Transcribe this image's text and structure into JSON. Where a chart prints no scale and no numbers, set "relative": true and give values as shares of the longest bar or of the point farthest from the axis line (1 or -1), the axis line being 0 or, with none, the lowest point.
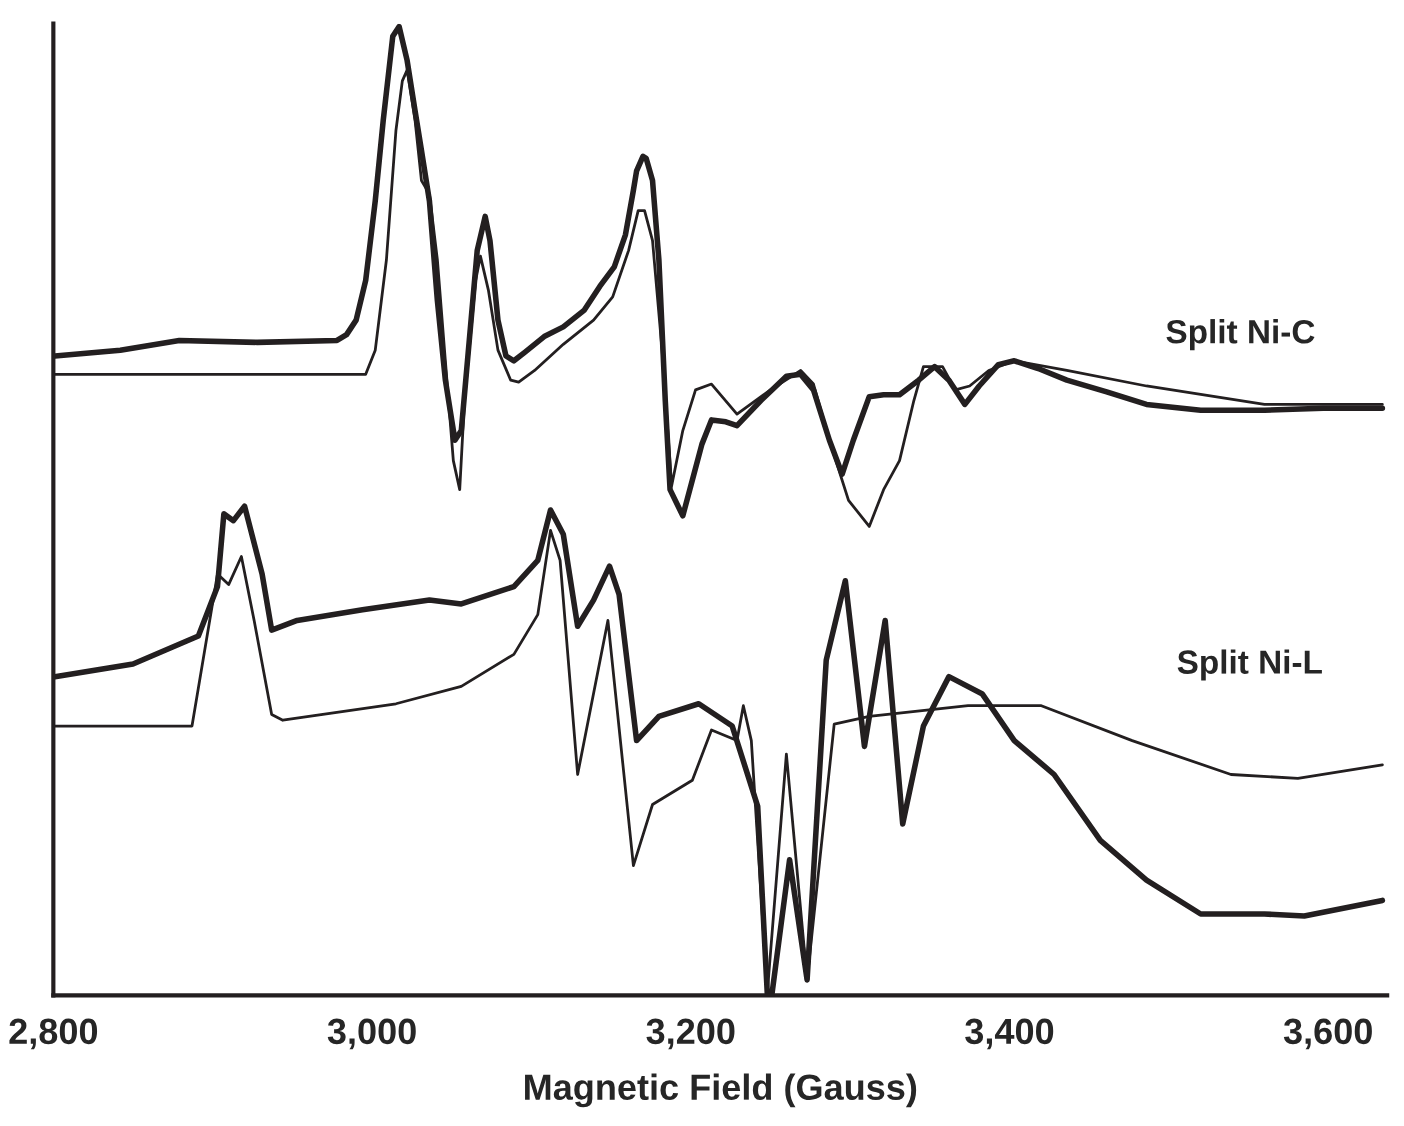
{
  "chart_data": {
    "type": "line",
    "relative": true,
    "xlabel": "Magnetic Field (Gauss)",
    "xlim": [
      2800,
      3637
    ],
    "xticks": [
      {
        "value": 2800,
        "label": "2,800"
      },
      {
        "value": 3000,
        "label": "3,000"
      },
      {
        "value": 3200,
        "label": "3,200"
      },
      {
        "value": 3400,
        "label": "3,400"
      },
      {
        "value": 3600,
        "label": "3,600"
      }
    ],
    "tick_labels": "x",
    "grid": false,
    "legend": false,
    "marker": "none",
    "line_style": "solid",
    "series": [
      {
        "color": "#231f20",
        "x": [
          2801,
          2842,
          2879,
          2928,
          2978,
          2984,
          2990,
          2996,
          3002,
          3007,
          3013,
          3017,
          3022,
          3027,
          3031,
          3036,
          3041,
          3046,
          3052,
          3056,
          3061,
          3066,
          3071,
          3074,
          3079,
          3084,
          3089,
          3096,
          3108,
          3120,
          3133,
          3143,
          3152,
          3159,
          3164,
          3166,
          3170,
          3172,
          3176,
          3180,
          3184,
          3187,
          3195,
          3201,
          3207,
          3213,
          3222,
          3229,
          3244,
          3260,
          3269,
          3277,
          3287,
          3295,
          3302,
          3312,
          3321,
          3331,
          3343,
          3353,
          3362,
          3372,
          3381,
          3393,
          3403,
          3418,
          3436,
          3461,
          3486,
          3520,
          3560,
          3597,
          3634
        ],
        "values": [
          0.66,
          0.666,
          0.676,
          0.674,
          0.676,
          0.682,
          0.697,
          0.738,
          0.82,
          0.903,
          0.99,
          1.0,
          0.965,
          0.913,
          0.872,
          0.82,
          0.717,
          0.635,
          0.573,
          0.583,
          0.676,
          0.769,
          0.804,
          0.779,
          0.697,
          0.66,
          0.655,
          0.664,
          0.68,
          0.69,
          0.707,
          0.732,
          0.752,
          0.785,
          0.831,
          0.851,
          0.866,
          0.864,
          0.841,
          0.759,
          0.614,
          0.522,
          0.495,
          0.532,
          0.569,
          0.594,
          0.592,
          0.588,
          0.614,
          0.639,
          0.641,
          0.625,
          0.573,
          0.538,
          0.573,
          0.618,
          0.62,
          0.62,
          0.635,
          0.649,
          0.635,
          0.61,
          0.629,
          0.651,
          0.655,
          0.647,
          0.635,
          0.623,
          0.61,
          0.604,
          0.604,
          0.606,
          0.606
        ]
      },
      {
        "color": "#231f20",
        "x": [
          2801,
          2996,
          3002,
          3009,
          3015,
          3019,
          3022,
          3027,
          3031,
          3036,
          3041,
          3046,
          3051,
          3055,
          3058,
          3065,
          3068,
          3073,
          3079,
          3087,
          3092,
          3102,
          3120,
          3139,
          3151,
          3161,
          3167,
          3171,
          3176,
          3182,
          3186,
          3188,
          3195,
          3203,
          3213,
          3229,
          3250,
          3269,
          3277,
          3287,
          3299,
          3312,
          3321,
          3331,
          3340,
          3346,
          3358,
          3366,
          3375,
          3387,
          3403,
          3436,
          3486,
          3560,
          3634
        ],
        "values": [
          0.641,
          0.641,
          0.666,
          0.759,
          0.893,
          0.944,
          0.955,
          0.903,
          0.841,
          0.827,
          0.759,
          0.655,
          0.552,
          0.522,
          0.614,
          0.738,
          0.763,
          0.728,
          0.666,
          0.635,
          0.633,
          0.645,
          0.672,
          0.697,
          0.721,
          0.769,
          0.81,
          0.81,
          0.779,
          0.666,
          0.573,
          0.526,
          0.583,
          0.625,
          0.631,
          0.6,
          0.625,
          0.645,
          0.631,
          0.573,
          0.511,
          0.484,
          0.522,
          0.552,
          0.614,
          0.649,
          0.649,
          0.625,
          0.629,
          0.645,
          0.655,
          0.645,
          0.629,
          0.61,
          0.61
        ]
      },
      {
        "color": "#231f20",
        "x": [
          2801,
          2850,
          2891,
          2903,
          2907,
          2913,
          2920,
          2931,
          2937,
          2953,
          2994,
          3036,
          3056,
          3089,
          3104,
          3112,
          3120,
          3129,
          3139,
          3149,
          3155,
          3166,
          3180,
          3205,
          3226,
          3242,
          3248,
          3251,
          3262,
          3273,
          3285,
          3297,
          3309,
          3322,
          3333,
          3346,
          3362,
          3383,
          3403,
          3428,
          3457,
          3486,
          3520,
          3560,
          3585,
          3634
        ],
        "values": [
          0.329,
          0.342,
          0.371,
          0.422,
          0.497,
          0.49,
          0.505,
          0.435,
          0.377,
          0.387,
          0.398,
          0.408,
          0.404,
          0.422,
          0.449,
          0.501,
          0.476,
          0.381,
          0.408,
          0.443,
          0.414,
          0.263,
          0.288,
          0.301,
          0.278,
          0.195,
          0.002,
          0.002,
          0.14,
          0.016,
          0.346,
          0.428,
          0.257,
          0.387,
          0.177,
          0.278,
          0.329,
          0.311,
          0.263,
          0.228,
          0.16,
          0.119,
          0.084,
          0.084,
          0.082,
          0.098
        ]
      },
      {
        "color": "#231f20",
        "x": [
          2801,
          2887,
          2903,
          2910,
          2918,
          2926,
          2937,
          2944,
          3015,
          3056,
          3089,
          3104,
          3112,
          3118,
          3129,
          3148,
          3164,
          3176,
          3201,
          3213,
          3229,
          3233,
          3238,
          3248,
          3260,
          3273,
          3290,
          3312,
          3374,
          3420,
          3477,
          3539,
          3581,
          3634
        ],
        "values": [
          0.278,
          0.278,
          0.435,
          0.424,
          0.453,
          0.387,
          0.29,
          0.284,
          0.301,
          0.319,
          0.352,
          0.393,
          0.48,
          0.449,
          0.228,
          0.387,
          0.134,
          0.197,
          0.222,
          0.274,
          0.263,
          0.299,
          0.263,
          0.002,
          0.249,
          0.016,
          0.28,
          0.288,
          0.299,
          0.299,
          0.263,
          0.228,
          0.224,
          0.238
        ]
      }
    ],
    "annotations": [
      "Split Ni-C",
      "Split Ni-L"
    ]
  }
}
